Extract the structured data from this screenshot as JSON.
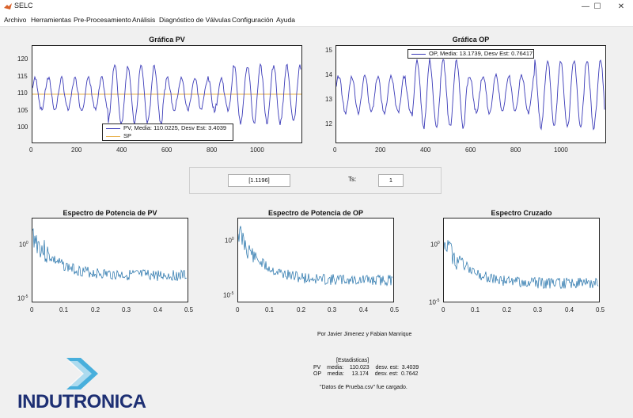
{
  "window": {
    "title": "SELC",
    "controls": [
      "—",
      "☐",
      "✕"
    ]
  },
  "menu": [
    "Archivo",
    "Herramientas",
    "Pre-Procesamiento",
    "Análisis",
    "Diagnóstico de Válvulas",
    "Configuración",
    "Ayuda"
  ],
  "pv_plot": {
    "title": "Gráfica PV",
    "yticks": [
      "120",
      "115",
      "110",
      "105",
      "100"
    ],
    "xticks": [
      "0",
      "200",
      "400",
      "600",
      "800",
      "1000"
    ],
    "legend": [
      "PV, Media: 110.0225, Desv Est: 3.4039",
      "SP"
    ],
    "line_color": "#3a3ab8",
    "sp_color": "#e8b04a"
  },
  "op_plot": {
    "title": "Gráfica OP",
    "yticks": [
      "15",
      "14",
      "13",
      "12"
    ],
    "xticks": [
      "0",
      "200",
      "400",
      "600",
      "800",
      "1000"
    ],
    "legend": [
      "OP, Media: 13.1739, Desv Est: 0.76417"
    ],
    "line_color": "#3a3ab8"
  },
  "controls": {
    "param_value": "[1.1196]",
    "ts_label": "Ts:",
    "ts_value": "1"
  },
  "spectra": [
    {
      "title": "Espectro de Potencia de PV",
      "ytop": "10",
      "ytop_exp": "0",
      "ybot": "10",
      "ybot_exp": "-5",
      "xticks": [
        "0",
        "0.1",
        "0.2",
        "0.3",
        "0.4",
        "0.5"
      ]
    },
    {
      "title": "Espectro de Potencia de OP",
      "ytop": "10",
      "ytop_exp": "0",
      "ybot": "10",
      "ybot_exp": "-5",
      "xticks": [
        "0",
        "0.1",
        "0.2",
        "0.3",
        "0.4",
        "0.5"
      ]
    },
    {
      "title": "Espectro Cruzado",
      "ytop": "10",
      "ytop_exp": "0",
      "ybot": "10",
      "ybot_exp": "-5",
      "xticks": [
        "0",
        "0.1",
        "0.2",
        "0.3",
        "0.4",
        "0.5"
      ]
    }
  ],
  "spectrum_color": "#1f6fa8",
  "footer": {
    "authors": "Por Javier Jimenez y Fabian Manrique",
    "stats_header": "[Estadisticas]",
    "stats_pv": "PV    media:    110.023    desv. est:  3.4039",
    "stats_op": "OP    media:     13.174    desv. est:  0.7642",
    "loaded": "\"Datos de Prueba.csv\" fue cargado."
  },
  "logo": {
    "text": "INDUTRONICA",
    "color": "#1d2f73",
    "accent": "#2aa3d8"
  }
}
